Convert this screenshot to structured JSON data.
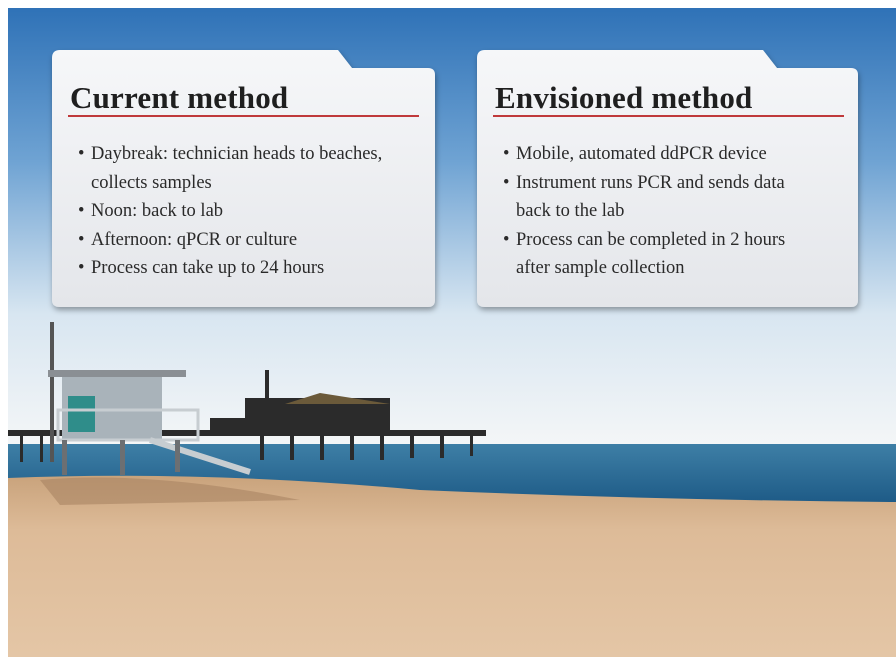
{
  "cards": [
    {
      "title": "Current method",
      "items": [
        "Daybreak: technician heads to beaches, collects samples",
        "Noon: back to lab",
        "Afternoon: qPCR or culture",
        "Process can take up to 24 hours"
      ]
    },
    {
      "title": "Envisioned method",
      "items": [
        "Mobile, automated ddPCR device",
        "Instrument runs PCR and sends data back to the lab",
        "Process can be completed in 2 hours after sample collection"
      ]
    }
  ]
}
